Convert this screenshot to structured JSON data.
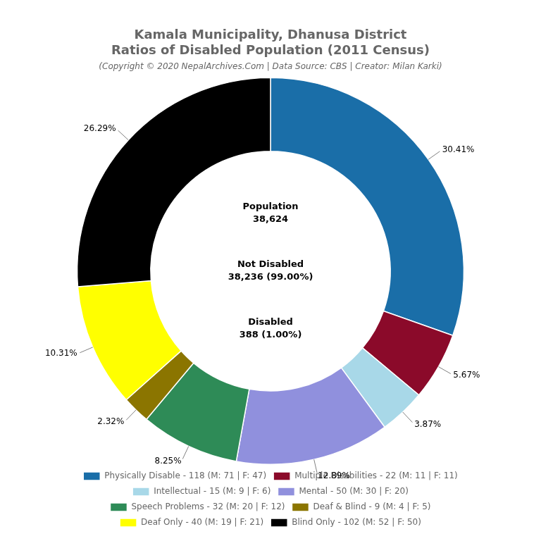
{
  "chart_data": {
    "type": "doughnut",
    "title": [
      "Kamala Municipality, Dhanusa District",
      "Ratios of Disabled Population (2011 Census)"
    ],
    "subtitle": "(Copyright © 2020 NepalArchives.Com | Data Source: CBS | Creator: Milan Karki)",
    "categories": [
      "Physically Disable - 118 (M: 71 | F: 47)",
      "Multiple Disabilities - 22 (M: 11 | F: 11)",
      "Intellectual - 15 (M: 9 | F: 6)",
      "Mental - 50 (M: 30 | F: 20)",
      "Speech Problems - 32 (M: 20 | F: 12)",
      "Deaf & Blind - 9 (M: 4 | F: 5)",
      "Deaf Only - 40 (M: 19 | F: 21)",
      "Blind Only - 102 (M: 52 | F: 50)"
    ],
    "values": [
      30.41,
      5.67,
      3.87,
      12.89,
      8.25,
      2.32,
      10.31,
      26.29
    ],
    "value_labels": [
      "30.41%",
      "5.67%",
      "3.87%",
      "12.89%",
      "8.25%",
      "2.32%",
      "10.31%",
      "26.29%"
    ],
    "colors": [
      "#1a6ea8",
      "#8b0a2a",
      "#a8d8e8",
      "#9090dd",
      "#2e8b57",
      "#8b7500",
      "#ffff00",
      "#000000"
    ],
    "data_labels": true,
    "legend": "bottom",
    "annotations": [
      "Population\n38,624",
      "Not Disabled\n38,236 (99.00%)",
      "Disabled\n388 (1.00%)"
    ]
  }
}
